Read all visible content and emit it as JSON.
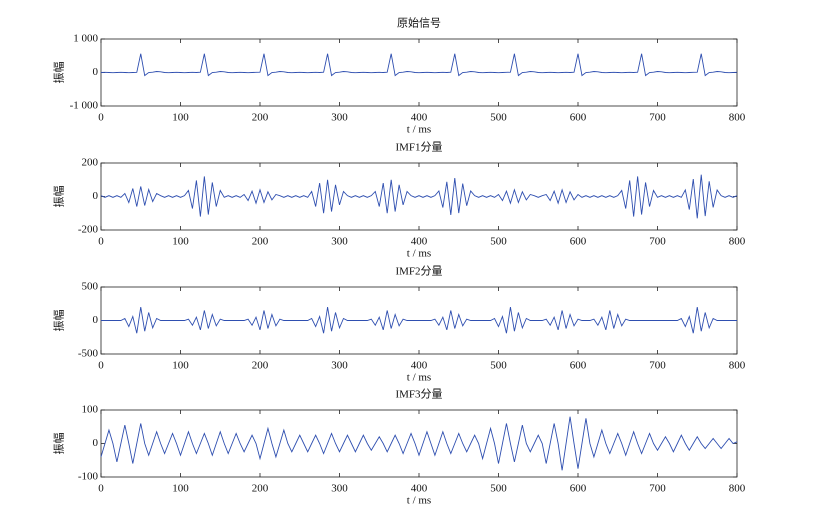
{
  "chart_data": [
    {
      "type": "line",
      "title": "原始信号",
      "ylabel": "振幅",
      "xlabel": "t / ms",
      "color": "#2f4fb0",
      "xlim": [
        0,
        800
      ],
      "xticks": [
        0,
        100,
        200,
        300,
        400,
        500,
        600,
        700,
        800
      ],
      "ylim": [
        -1000,
        1000
      ],
      "yticks": [
        {
          "value": -1000,
          "label": "-1 000"
        },
        0,
        {
          "value": 1000,
          "label": "1 000"
        }
      ],
      "x": [
        0,
        5,
        10,
        15,
        20,
        25,
        30,
        35,
        40,
        45,
        50,
        55,
        60,
        65,
        70,
        75,
        80,
        85,
        90,
        95,
        100,
        105,
        110,
        115,
        120,
        125,
        130,
        135,
        140,
        145,
        150,
        155,
        160,
        165,
        170,
        175,
        180,
        185,
        190,
        195,
        200,
        205,
        210,
        215,
        220,
        225,
        230,
        235,
        240,
        245,
        250,
        255,
        260,
        265,
        270,
        275,
        280,
        285,
        290,
        295,
        300,
        305,
        310,
        315,
        320,
        325,
        330,
        335,
        340,
        345,
        350,
        355,
        360,
        365,
        370,
        375,
        380,
        385,
        390,
        395,
        400,
        405,
        410,
        415,
        420,
        425,
        430,
        435,
        440,
        445,
        450,
        455,
        460,
        465,
        470,
        475,
        480,
        485,
        490,
        495,
        500,
        505,
        510,
        515,
        520,
        525,
        530,
        535,
        540,
        545,
        550,
        555,
        560,
        565,
        570,
        575,
        580,
        585,
        590,
        595,
        600,
        605,
        610,
        615,
        620,
        625,
        630,
        635,
        640,
        645,
        650,
        655,
        660,
        665,
        670,
        675,
        680,
        685,
        690,
        695,
        700,
        705,
        710,
        715,
        720,
        725,
        730,
        735,
        740,
        745,
        750,
        755,
        760,
        765,
        770,
        775,
        780,
        785,
        790,
        795,
        800
      ],
      "values": [
        0,
        5,
        0,
        -5,
        0,
        5,
        0,
        -5,
        0,
        5,
        560,
        -90,
        0,
        10,
        30,
        20,
        0,
        -5,
        0,
        5,
        0,
        -5,
        0,
        5,
        0,
        10,
        560,
        -90,
        0,
        10,
        30,
        20,
        0,
        -5,
        0,
        5,
        0,
        -5,
        0,
        5,
        10,
        560,
        -90,
        0,
        10,
        30,
        20,
        0,
        -5,
        0,
        5,
        0,
        -5,
        0,
        5,
        0,
        10,
        560,
        -90,
        0,
        10,
        30,
        20,
        0,
        -5,
        0,
        5,
        0,
        -5,
        0,
        5,
        0,
        10,
        560,
        -90,
        0,
        10,
        30,
        20,
        0,
        -5,
        0,
        5,
        0,
        -5,
        0,
        5,
        0,
        10,
        560,
        -90,
        0,
        10,
        30,
        20,
        0,
        -5,
        0,
        5,
        0,
        -5,
        0,
        5,
        10,
        560,
        -90,
        0,
        10,
        30,
        20,
        0,
        -5,
        0,
        5,
        0,
        -5,
        0,
        5,
        0,
        10,
        560,
        -90,
        0,
        10,
        30,
        20,
        0,
        -5,
        0,
        5,
        0,
        -5,
        0,
        5,
        0,
        10,
        560,
        -90,
        0,
        10,
        30,
        20,
        0,
        -5,
        0,
        5,
        0,
        -5,
        0,
        5,
        10,
        560,
        -90,
        0,
        10,
        30,
        20,
        0,
        -5,
        0,
        5
      ]
    },
    {
      "type": "line",
      "title": "IMF1分量",
      "ylabel": "振幅",
      "xlabel": "t / ms",
      "color": "#2f4fb0",
      "xlim": [
        0,
        800
      ],
      "xticks": [
        0,
        100,
        200,
        300,
        400,
        500,
        600,
        700,
        800
      ],
      "ylim": [
        -200,
        200
      ],
      "yticks": [
        -200,
        0,
        200
      ],
      "x": [
        0,
        5,
        10,
        15,
        20,
        25,
        30,
        35,
        40,
        45,
        50,
        55,
        60,
        65,
        70,
        75,
        80,
        85,
        90,
        95,
        100,
        105,
        110,
        115,
        120,
        125,
        130,
        135,
        140,
        145,
        150,
        155,
        160,
        165,
        170,
        175,
        180,
        185,
        190,
        195,
        200,
        205,
        210,
        215,
        220,
        225,
        230,
        235,
        240,
        245,
        250,
        255,
        260,
        265,
        270,
        275,
        280,
        285,
        290,
        295,
        300,
        305,
        310,
        315,
        320,
        325,
        330,
        335,
        340,
        345,
        350,
        355,
        360,
        365,
        370,
        375,
        380,
        385,
        390,
        395,
        400,
        405,
        410,
        415,
        420,
        425,
        430,
        435,
        440,
        445,
        450,
        455,
        460,
        465,
        470,
        475,
        480,
        485,
        490,
        495,
        500,
        505,
        510,
        515,
        520,
        525,
        530,
        535,
        540,
        545,
        550,
        555,
        560,
        565,
        570,
        575,
        580,
        585,
        590,
        595,
        600,
        605,
        610,
        615,
        620,
        625,
        630,
        635,
        640,
        645,
        650,
        655,
        660,
        665,
        670,
        675,
        680,
        685,
        690,
        695,
        700,
        705,
        710,
        715,
        720,
        725,
        730,
        735,
        740,
        745,
        750,
        755,
        760,
        765,
        770,
        775,
        780,
        785,
        790,
        795,
        800
      ],
      "values": [
        5,
        -5,
        5,
        -5,
        5,
        -5,
        18,
        -36,
        48,
        -60,
        60,
        -54,
        42,
        -30,
        18,
        5,
        -5,
        5,
        -5,
        5,
        -5,
        5,
        36,
        -72,
        96,
        -120,
        120,
        -108,
        84,
        -60,
        36,
        -5,
        5,
        -5,
        5,
        -5,
        12,
        -24,
        32,
        -40,
        40,
        -36,
        28,
        -20,
        12,
        5,
        -5,
        5,
        -5,
        5,
        -5,
        5,
        -5,
        30,
        -60,
        80,
        -100,
        100,
        -90,
        70,
        -50,
        30,
        5,
        -5,
        5,
        -5,
        5,
        -5,
        5,
        30,
        -60,
        80,
        -100,
        100,
        -90,
        70,
        -50,
        30,
        5,
        -5,
        5,
        -5,
        5,
        -5,
        5,
        33,
        -66,
        88,
        -110,
        110,
        -99,
        77,
        -55,
        33,
        5,
        -5,
        5,
        -5,
        5,
        -5,
        12,
        -24,
        32,
        -40,
        40,
        -36,
        28,
        -20,
        12,
        5,
        -5,
        5,
        12,
        -24,
        32,
        -40,
        40,
        -36,
        28,
        -20,
        12,
        -5,
        5,
        -5,
        5,
        -5,
        5,
        -5,
        5,
        -5,
        5,
        36,
        -72,
        96,
        -120,
        120,
        -108,
        84,
        -60,
        36,
        -5,
        5,
        -5,
        5,
        -5,
        5,
        -5,
        39,
        -78,
        104,
        -130,
        130,
        -117,
        91,
        -65,
        39,
        5,
        -5,
        5,
        -5,
        5
      ]
    },
    {
      "type": "line",
      "title": "IMF2分量",
      "ylabel": "振幅",
      "xlabel": "t / ms",
      "color": "#2f4fb0",
      "xlim": [
        0,
        800
      ],
      "xticks": [
        0,
        100,
        200,
        300,
        400,
        500,
        600,
        700,
        800
      ],
      "ylim": [
        -500,
        500
      ],
      "yticks": [
        -500,
        0,
        500
      ],
      "x": [
        0,
        5,
        10,
        15,
        20,
        25,
        30,
        35,
        40,
        45,
        50,
        55,
        60,
        65,
        70,
        75,
        80,
        85,
        90,
        95,
        100,
        105,
        110,
        115,
        120,
        125,
        130,
        135,
        140,
        145,
        150,
        155,
        160,
        165,
        170,
        175,
        180,
        185,
        190,
        195,
        200,
        205,
        210,
        215,
        220,
        225,
        230,
        235,
        240,
        245,
        250,
        255,
        260,
        265,
        270,
        275,
        280,
        285,
        290,
        295,
        300,
        305,
        310,
        315,
        320,
        325,
        330,
        335,
        340,
        345,
        350,
        355,
        360,
        365,
        370,
        375,
        380,
        385,
        390,
        395,
        400,
        405,
        410,
        415,
        420,
        425,
        430,
        435,
        440,
        445,
        450,
        455,
        460,
        465,
        470,
        475,
        480,
        485,
        490,
        495,
        500,
        505,
        510,
        515,
        520,
        525,
        530,
        535,
        540,
        545,
        550,
        555,
        560,
        565,
        570,
        575,
        580,
        585,
        590,
        595,
        600,
        605,
        610,
        615,
        620,
        625,
        630,
        635,
        640,
        645,
        650,
        655,
        660,
        665,
        670,
        675,
        680,
        685,
        690,
        695,
        700,
        705,
        710,
        715,
        720,
        725,
        730,
        735,
        740,
        745,
        750,
        755,
        760,
        765,
        770,
        775,
        780,
        785,
        790,
        795,
        800
      ],
      "values": [
        0,
        0,
        0,
        0,
        0,
        0,
        30,
        -90,
        60,
        -190,
        200,
        -160,
        120,
        -110,
        30,
        0,
        0,
        0,
        0,
        0,
        0,
        0,
        20,
        -70,
        50,
        -140,
        150,
        -120,
        90,
        -80,
        20,
        0,
        0,
        0,
        0,
        0,
        0,
        20,
        -70,
        50,
        -140,
        150,
        -120,
        90,
        -80,
        20,
        0,
        0,
        0,
        0,
        0,
        0,
        0,
        30,
        -90,
        60,
        -190,
        200,
        -160,
        120,
        -110,
        30,
        0,
        0,
        0,
        0,
        0,
        0,
        20,
        -70,
        50,
        -140,
        150,
        -120,
        90,
        -80,
        20,
        0,
        0,
        0,
        0,
        0,
        0,
        0,
        20,
        -70,
        50,
        -140,
        150,
        -120,
        90,
        -80,
        20,
        0,
        0,
        0,
        0,
        0,
        0,
        30,
        -90,
        60,
        -190,
        200,
        -160,
        120,
        -110,
        30,
        0,
        0,
        0,
        0,
        20,
        -70,
        50,
        -140,
        150,
        -120,
        90,
        -80,
        20,
        0,
        0,
        0,
        20,
        -70,
        50,
        -140,
        150,
        -120,
        90,
        -80,
        20,
        0,
        0,
        0,
        0,
        0,
        0,
        0,
        0,
        0,
        0,
        0,
        0,
        0,
        30,
        -90,
        60,
        -190,
        200,
        -160,
        120,
        -110,
        30,
        0,
        0,
        0,
        0,
        0,
        0
      ]
    },
    {
      "type": "line",
      "title": "IMF3分量",
      "ylabel": "振幅",
      "xlabel": "t / ms",
      "color": "#2f4fb0",
      "xlim": [
        0,
        800
      ],
      "xticks": [
        0,
        100,
        200,
        300,
        400,
        500,
        600,
        700,
        800
      ],
      "ylim": [
        -100,
        100
      ],
      "yticks": [
        -100,
        0,
        100
      ],
      "x": [
        0,
        5,
        10,
        15,
        20,
        25,
        30,
        35,
        40,
        45,
        50,
        55,
        60,
        65,
        70,
        75,
        80,
        85,
        90,
        95,
        100,
        105,
        110,
        115,
        120,
        125,
        130,
        135,
        140,
        145,
        150,
        155,
        160,
        165,
        170,
        175,
        180,
        185,
        190,
        195,
        200,
        205,
        210,
        215,
        220,
        225,
        230,
        235,
        240,
        245,
        250,
        255,
        260,
        265,
        270,
        275,
        280,
        285,
        290,
        295,
        300,
        305,
        310,
        315,
        320,
        325,
        330,
        335,
        340,
        345,
        350,
        355,
        360,
        365,
        370,
        375,
        380,
        385,
        390,
        395,
        400,
        405,
        410,
        415,
        420,
        425,
        430,
        435,
        440,
        445,
        450,
        455,
        460,
        465,
        470,
        475,
        480,
        485,
        490,
        495,
        500,
        505,
        510,
        515,
        520,
        525,
        530,
        535,
        540,
        545,
        550,
        555,
        560,
        565,
        570,
        575,
        580,
        585,
        590,
        595,
        600,
        605,
        610,
        615,
        620,
        625,
        630,
        635,
        640,
        645,
        650,
        655,
        660,
        665,
        670,
        675,
        680,
        685,
        690,
        695,
        700,
        705,
        710,
        715,
        720,
        725,
        730,
        735,
        740,
        745,
        750,
        755,
        760,
        765,
        770,
        775,
        780,
        785,
        790,
        795,
        800
      ],
      "values": [
        -40,
        0,
        40,
        0,
        -55,
        0,
        55,
        0,
        -60,
        0,
        60,
        0,
        -35,
        0,
        35,
        0,
        -30,
        0,
        30,
        0,
        -35,
        0,
        35,
        0,
        -30,
        0,
        30,
        0,
        -35,
        0,
        35,
        0,
        -30,
        0,
        30,
        0,
        -25,
        0,
        25,
        0,
        -45,
        0,
        45,
        0,
        -40,
        0,
        40,
        0,
        -25,
        0,
        25,
        0,
        -25,
        0,
        25,
        0,
        -30,
        0,
        30,
        0,
        -25,
        0,
        25,
        0,
        -25,
        0,
        25,
        0,
        -20,
        0,
        20,
        0,
        -25,
        0,
        25,
        0,
        -30,
        0,
        30,
        0,
        -35,
        0,
        35,
        0,
        -35,
        0,
        35,
        0,
        -30,
        0,
        30,
        0,
        -25,
        0,
        25,
        0,
        -45,
        0,
        45,
        0,
        -60,
        0,
        60,
        0,
        -55,
        0,
        55,
        0,
        -25,
        0,
        25,
        0,
        -60,
        0,
        60,
        0,
        -80,
        0,
        80,
        0,
        -75,
        0,
        75,
        0,
        -40,
        0,
        40,
        0,
        -30,
        0,
        30,
        0,
        -35,
        0,
        35,
        0,
        -30,
        0,
        30,
        0,
        -20,
        0,
        20,
        0,
        -25,
        0,
        25,
        0,
        -20,
        0,
        20,
        0,
        -15,
        0,
        15,
        0,
        -15,
        0,
        15,
        0,
        5
      ]
    }
  ]
}
